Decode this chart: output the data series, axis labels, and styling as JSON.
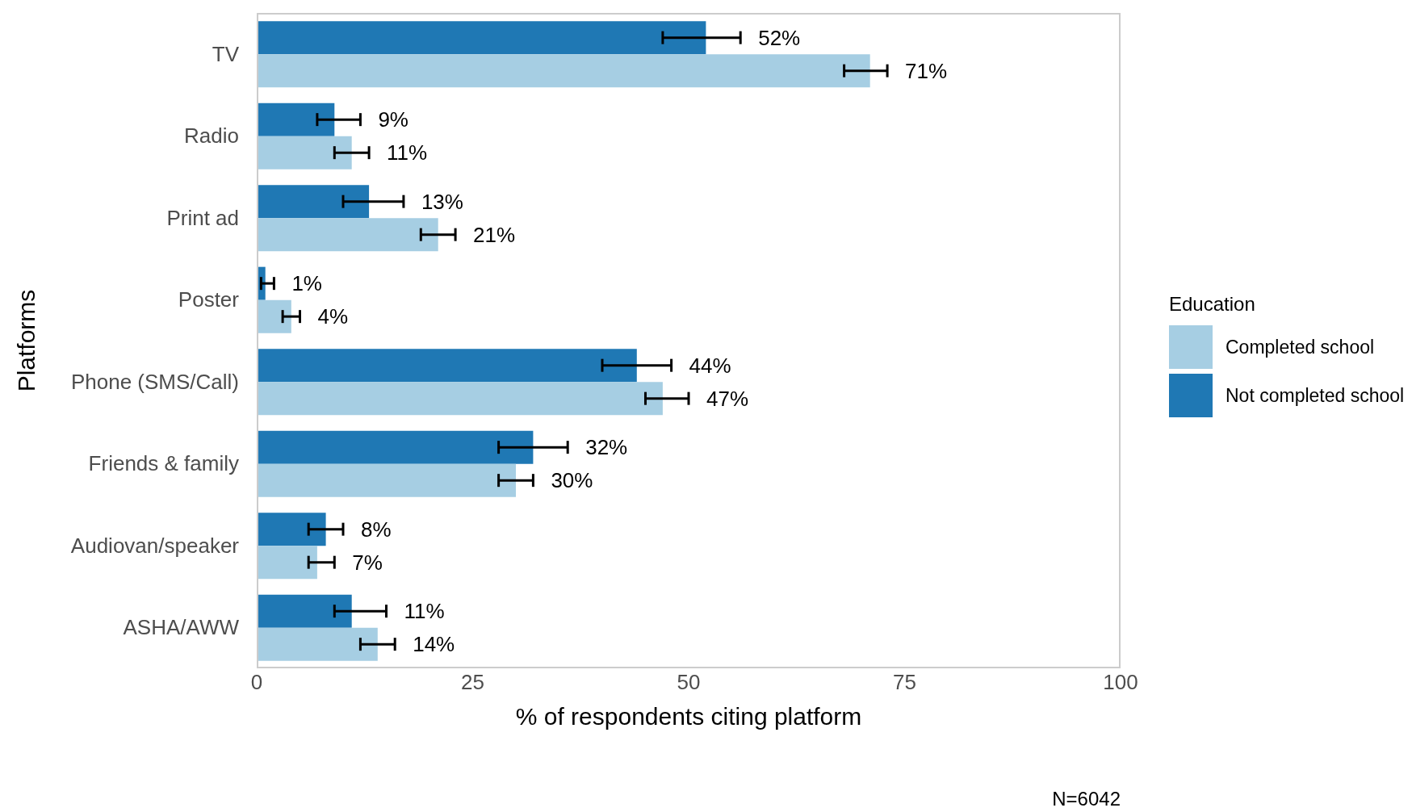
{
  "chart_data": {
    "type": "bar",
    "orientation": "horizontal",
    "xlabel": "% of respondents citing platform",
    "ylabel": "Platforms",
    "legend_title": "Education",
    "legend": "right",
    "grid": false,
    "categories": [
      "TV",
      "Radio",
      "Print ad",
      "Poster",
      "Phone (SMS/Call)",
      "Friends & family",
      "Audiovan/speaker",
      "ASHA/AWW"
    ],
    "xlim": [
      0,
      100
    ],
    "xticks": [
      0,
      25,
      50,
      75,
      100
    ],
    "series": [
      {
        "name": "Completed school",
        "color": "#a6cee3",
        "values": [
          71,
          11,
          21,
          4,
          47,
          30,
          7,
          14
        ],
        "errors": [
          [
            68,
            73
          ],
          [
            9,
            13
          ],
          [
            19,
            23
          ],
          [
            3,
            5
          ],
          [
            45,
            50
          ],
          [
            28,
            32
          ],
          [
            6,
            9
          ],
          [
            12,
            16
          ]
        ],
        "value_labels": [
          "71%",
          "11%",
          "21%",
          "4%",
          "47%",
          "30%",
          "7%",
          "14%"
        ]
      },
      {
        "name": "Not completed school",
        "color": "#1f78b4",
        "values": [
          52,
          9,
          13,
          1,
          44,
          32,
          8,
          11
        ],
        "errors": [
          [
            47,
            56
          ],
          [
            7,
            12
          ],
          [
            10,
            17
          ],
          [
            0.5,
            2
          ],
          [
            40,
            48
          ],
          [
            28,
            36
          ],
          [
            6,
            10
          ],
          [
            9,
            15
          ]
        ],
        "value_labels": [
          "52%",
          "9%",
          "13%",
          "1%",
          "44%",
          "32%",
          "8%",
          "11%"
        ]
      }
    ],
    "annotations": [
      "N=6042"
    ]
  }
}
